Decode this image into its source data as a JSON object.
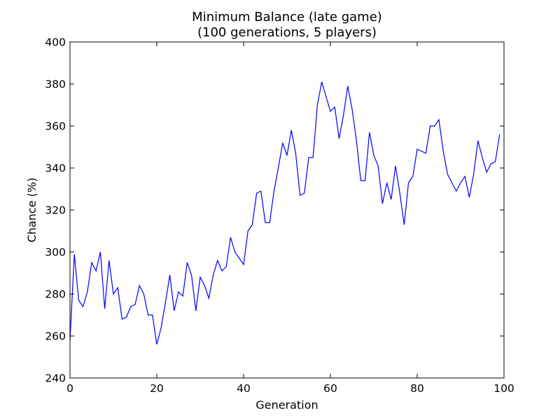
{
  "chart_data": {
    "type": "line",
    "title": [
      "Minimum Balance (late game)",
      "(100 generations, 5 players)"
    ],
    "xlabel": "Generation",
    "ylabel": "Chance (%)",
    "xlim": [
      0,
      100
    ],
    "ylim": [
      240,
      400
    ],
    "xticks": [
      0,
      20,
      40,
      60,
      80,
      100
    ],
    "yticks": [
      240,
      260,
      280,
      300,
      320,
      340,
      360,
      380,
      400
    ],
    "grid": false,
    "legend": "none",
    "series": [
      {
        "color": "#0000ff",
        "x": [
          0,
          1,
          2,
          3,
          4,
          5,
          6,
          7,
          8,
          9,
          10,
          11,
          12,
          13,
          14,
          15,
          16,
          17,
          18,
          19,
          20,
          21,
          22,
          23,
          24,
          25,
          26,
          27,
          28,
          29,
          30,
          31,
          32,
          33,
          34,
          35,
          36,
          37,
          38,
          39,
          40,
          41,
          42,
          43,
          44,
          45,
          46,
          47,
          48,
          49,
          50,
          51,
          52,
          53,
          54,
          55,
          56,
          57,
          58,
          59,
          60,
          61,
          62,
          63,
          64,
          65,
          66,
          67,
          68,
          69,
          70,
          71,
          72,
          73,
          74,
          75,
          76,
          77,
          78,
          79,
          80,
          81,
          82,
          83,
          84,
          85,
          86,
          87,
          88,
          89,
          90,
          91,
          92,
          93,
          94,
          95,
          96,
          97,
          98,
          99
        ],
        "y": [
          258,
          299,
          277,
          274,
          281,
          295,
          291,
          300,
          273,
          296,
          280,
          283,
          268,
          269,
          274,
          275,
          284,
          280,
          270,
          270,
          256,
          264,
          276,
          289,
          272,
          281,
          279,
          295,
          289,
          272,
          288,
          284,
          278,
          289,
          296,
          291,
          293,
          307,
          300,
          297,
          294,
          310,
          313,
          328,
          329,
          314,
          314,
          329,
          340,
          352,
          346,
          358,
          347,
          327,
          328,
          345,
          345,
          370,
          381,
          374,
          367,
          369,
          354,
          365,
          379,
          368,
          353,
          334,
          334,
          357,
          346,
          341,
          323,
          333,
          325,
          341,
          328,
          313,
          333,
          336,
          349,
          348,
          347,
          360,
          360,
          363,
          348,
          337,
          333,
          329,
          333,
          336,
          326,
          337,
          353,
          345,
          338,
          342,
          343,
          356
        ]
      }
    ]
  }
}
